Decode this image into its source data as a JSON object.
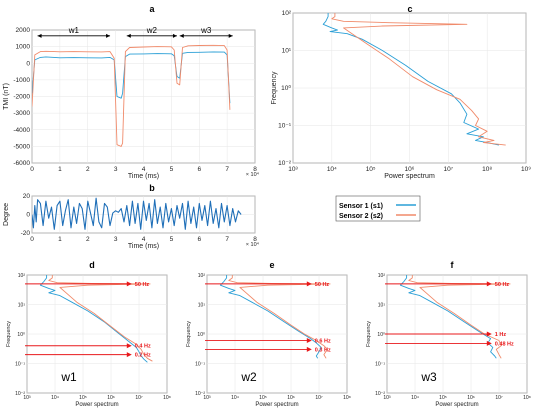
{
  "colors": {
    "s1": "#2a9fd6",
    "s2": "#f08a6a",
    "dark": "#1f6fb8",
    "red": "#e8181b",
    "grid": "#e6e6e6",
    "axis": "#333333"
  },
  "chart_data": [
    {
      "id": "a",
      "panel_label": "a",
      "type": "line",
      "xlabel": "Time (ms)",
      "ylabel": "TMI (nT)",
      "x_exponent": "× 10⁴",
      "xlim": [
        0,
        80000
      ],
      "ylim": [
        -6000,
        2000
      ],
      "xticks": [
        "0",
        "1",
        "2",
        "3",
        "4",
        "5",
        "6",
        "7",
        "8"
      ],
      "yticks": [
        "-6000",
        "-5000",
        "-4000",
        "-3000",
        "-2000",
        "-1000",
        "0",
        "1000",
        "2000"
      ],
      "annotations": [
        {
          "text": "w1",
          "x_start": 2000,
          "x_end": 28000,
          "y": 1650
        },
        {
          "text": "w2",
          "x_start": 34000,
          "x_end": 52000,
          "y": 1650
        },
        {
          "text": "w3",
          "x_start": 53000,
          "x_end": 72000,
          "y": 1650
        }
      ],
      "series": [
        {
          "name": "Sensor 1 (s1)",
          "color": "#2a9fd6",
          "x": [
            0,
            1000,
            3000,
            5000,
            8000,
            10000,
            15000,
            20000,
            25000,
            28000,
            29500,
            30500,
            32000,
            32500,
            33500,
            35000,
            40000,
            45000,
            50000,
            51000,
            52000,
            53000,
            54000,
            56000,
            60000,
            65000,
            69000,
            70000,
            71000
          ],
          "y": [
            -1800,
            200,
            350,
            380,
            350,
            330,
            340,
            330,
            320,
            350,
            200,
            -2000,
            -2100,
            -1800,
            400,
            550,
            560,
            580,
            570,
            450,
            -800,
            -900,
            600,
            650,
            660,
            680,
            670,
            500,
            -2400
          ]
        },
        {
          "name": "Sensor 2 (s2)",
          "color": "#f08a6a",
          "x": [
            0,
            1000,
            3000,
            5000,
            8000,
            10000,
            15000,
            20000,
            25000,
            28000,
            29500,
            30500,
            32000,
            32500,
            33500,
            35000,
            40000,
            45000,
            50000,
            51000,
            52000,
            53000,
            54000,
            56000,
            60000,
            65000,
            69000,
            70000,
            71000
          ],
          "y": [
            -2600,
            500,
            700,
            720,
            700,
            690,
            700,
            690,
            680,
            700,
            300,
            -4900,
            -5000,
            -4800,
            700,
            950,
            980,
            1000,
            990,
            800,
            -1200,
            -1300,
            950,
            1050,
            1070,
            1080,
            1060,
            800,
            -2800
          ]
        }
      ]
    },
    {
      "id": "b",
      "panel_label": "b",
      "type": "line",
      "xlabel": "Time (ms)",
      "ylabel": "Degree",
      "x_exponent": "× 10⁴",
      "xlim": [
        0,
        80000
      ],
      "ylim": [
        -25,
        25
      ],
      "xticks": [
        "0",
        "1",
        "2",
        "3",
        "4",
        "5",
        "6",
        "7",
        "8"
      ],
      "yticks": [
        "-20",
        "0",
        "20"
      ],
      "series": [
        {
          "name": "",
          "color": "#1f6fb8",
          "x": [
            0,
            500,
            1000,
            1500,
            2000,
            3000,
            4000,
            5000,
            6000,
            7000,
            8000,
            9000,
            10000,
            11000,
            12000,
            13000,
            14000,
            15000,
            16000,
            17000,
            18000,
            19000,
            20000,
            21000,
            22000,
            23000,
            24000,
            25000,
            26000,
            27000,
            28000,
            29000,
            30000,
            31000,
            32000,
            33000,
            34000,
            35000,
            36000,
            37000,
            38000,
            39000,
            40000,
            41000,
            42000,
            43000,
            44000,
            45000,
            46000,
            47000,
            48000,
            49000,
            50000,
            51000,
            52000,
            53000,
            54000,
            55000,
            56000,
            57000,
            58000,
            59000,
            60000,
            61000,
            62000,
            63000,
            64000,
            65000,
            66000,
            67000,
            68000,
            69000,
            70000,
            71000,
            72000,
            73000,
            74000,
            75000
          ],
          "y": [
            0,
            -18,
            12,
            -10,
            20,
            15,
            -15,
            18,
            -5,
            10,
            -20,
            12,
            18,
            -15,
            5,
            20,
            -18,
            10,
            -12,
            15,
            8,
            -20,
            18,
            2,
            -15,
            22,
            -10,
            -18,
            15,
            10,
            -15,
            2,
            5,
            3,
            8,
            -10,
            12,
            -15,
            18,
            -12,
            15,
            -20,
            18,
            -8,
            15,
            -18,
            20,
            -12,
            10,
            -18,
            15,
            -10,
            8,
            -15,
            12,
            -5,
            15,
            -20,
            18,
            -12,
            10,
            -18,
            15,
            -8,
            12,
            -15,
            18,
            -12,
            8,
            -18,
            15,
            -10,
            12,
            -15,
            8,
            -10,
            5,
            0
          ]
        }
      ]
    },
    {
      "id": "c",
      "panel_label": "c",
      "type": "line",
      "xlabel": "Power spectrum",
      "ylabel": "Frequency",
      "x_log": true,
      "y_log": true,
      "xlim": [
        1000,
        1000000000
      ],
      "ylim": [
        0.01,
        100
      ],
      "xticks": [
        "10³",
        "10⁴",
        "10⁵",
        "10⁶",
        "10⁷",
        "10⁸",
        "10⁹"
      ],
      "yticks": [
        "10⁻²",
        "10⁻¹",
        "10⁰",
        "10¹",
        "10²"
      ],
      "series": [
        {
          "name": "Sensor 1 (s1)",
          "color": "#2a9fd6",
          "x": [
            8000,
            8000,
            7000,
            6000,
            10000,
            14000,
            9000,
            25000,
            60000,
            200000,
            800000,
            3000000,
            12000000,
            20000000,
            30000000,
            25000000,
            60000000,
            30000000,
            80000000,
            50000000,
            100000000,
            200000000
          ],
          "y": [
            100,
            80,
            60,
            50,
            40,
            35,
            32,
            28,
            20,
            10,
            4,
            1.5,
            0.7,
            0.4,
            0.2,
            0.12,
            0.08,
            0.06,
            0.05,
            0.04,
            0.035,
            0.03
          ]
        },
        {
          "name": "Sensor 2 (s2)",
          "color": "#f08a6a",
          "x": [
            12000,
            12000,
            10000,
            20000,
            300000,
            30000000,
            200000,
            20000,
            30000,
            80000,
            300000,
            1200000,
            5000000,
            20000000,
            40000000,
            60000000,
            50000000,
            100000000,
            60000000,
            150000000,
            80000000,
            300000000
          ],
          "y": [
            100,
            80,
            70,
            60,
            55,
            50,
            45,
            40,
            30,
            15,
            6,
            2,
            0.9,
            0.5,
            0.25,
            0.15,
            0.1,
            0.07,
            0.05,
            0.04,
            0.035,
            0.03
          ]
        }
      ]
    },
    {
      "id": "d",
      "panel_label": "d",
      "type": "line",
      "xlabel": "Power spectrum",
      "ylabel": "Frequency",
      "window_label": "w1",
      "x_log": true,
      "y_log": true,
      "xlim": [
        1000,
        100000000
      ],
      "ylim": [
        0.01,
        100
      ],
      "xticks": [
        "10³",
        "10⁴",
        "10⁵",
        "10⁶",
        "10⁷",
        "10⁸"
      ],
      "yticks": [
        "10⁻²",
        "10⁻¹",
        "10⁰",
        "10¹",
        "10²"
      ],
      "markers": [
        {
          "label": "50 Hz",
          "freq": 50
        },
        {
          "label": "0.4 Hz",
          "freq": 0.4
        },
        {
          "label": "0.2 Hz",
          "freq": 0.2
        }
      ],
      "series": [
        {
          "name": "Sensor 1 (s1)",
          "color": "#2a9fd6",
          "x": [
            5000,
            5000,
            4000,
            3000,
            6000,
            10000,
            6000,
            15000,
            40000,
            150000,
            600000,
            2000000,
            5000000,
            8000000,
            10000000,
            12000000,
            15000000,
            20000000
          ],
          "y": [
            100,
            80,
            60,
            45,
            35,
            30,
            25,
            20,
            12,
            6,
            2.5,
            1,
            0.5,
            0.35,
            0.25,
            0.18,
            0.14,
            0.11
          ]
        },
        {
          "name": "Sensor 2 (s2)",
          "color": "#f08a6a",
          "x": [
            8000,
            8000,
            6000,
            12000,
            200000,
            25000000,
            150000,
            15000,
            25000,
            60000,
            250000,
            1000000,
            3000000,
            8000000,
            12000000,
            15000000,
            20000000,
            30000000
          ],
          "y": [
            100,
            80,
            65,
            55,
            52,
            50,
            45,
            38,
            25,
            12,
            5,
            1.8,
            0.8,
            0.45,
            0.3,
            0.2,
            0.15,
            0.12
          ]
        }
      ]
    },
    {
      "id": "e",
      "panel_label": "e",
      "type": "line",
      "xlabel": "Power spectrum",
      "ylabel": "Frequency",
      "window_label": "w2",
      "x_log": true,
      "y_log": true,
      "xlim": [
        1000,
        100000000
      ],
      "ylim": [
        0.01,
        100
      ],
      "xticks": [
        "10³",
        "10⁴",
        "10⁵",
        "10⁶",
        "10⁷",
        "10⁸"
      ],
      "yticks": [
        "10⁻²",
        "10⁻¹",
        "10⁰",
        "10¹",
        "10²"
      ],
      "markers": [
        {
          "label": "50 Hz",
          "freq": 50
        },
        {
          "label": "0.6 Hz",
          "freq": 0.6
        },
        {
          "label": "0.3 Hz",
          "freq": 0.3
        }
      ],
      "series": [
        {
          "name": "Sensor 1 (s1)",
          "color": "#2a9fd6",
          "x": [
            5000,
            5000,
            4000,
            3000,
            6000,
            10000,
            6000,
            15000,
            40000,
            150000,
            600000,
            2000000,
            5000000,
            8000000,
            12000000,
            10000000,
            8000000,
            9000000
          ],
          "y": [
            100,
            80,
            60,
            45,
            35,
            30,
            25,
            20,
            12,
            6,
            2.5,
            1.2,
            0.7,
            0.5,
            0.35,
            0.25,
            0.18,
            0.15
          ]
        },
        {
          "name": "Sensor 2 (s2)",
          "color": "#f08a6a",
          "x": [
            8000,
            8000,
            6000,
            12000,
            200000,
            25000000,
            150000,
            15000,
            25000,
            60000,
            250000,
            1000000,
            3000000,
            8000000,
            15000000,
            20000000,
            15000000,
            18000000
          ],
          "y": [
            100,
            80,
            65,
            55,
            52,
            50,
            45,
            38,
            25,
            12,
            5,
            2,
            1,
            0.6,
            0.4,
            0.3,
            0.2,
            0.15
          ]
        }
      ]
    },
    {
      "id": "f",
      "panel_label": "f",
      "type": "line",
      "xlabel": "Power spectrum",
      "ylabel": "Frequency",
      "window_label": "w3",
      "x_log": true,
      "y_log": true,
      "xlim": [
        1000,
        100000000
      ],
      "ylim": [
        0.01,
        100
      ],
      "xticks": [
        "10³",
        "10⁴",
        "10⁵",
        "10⁶",
        "10⁷",
        "10⁸"
      ],
      "yticks": [
        "10⁻²",
        "10⁻¹",
        "10⁰",
        "10¹",
        "10²"
      ],
      "markers": [
        {
          "label": "50 Hz",
          "freq": 50
        },
        {
          "label": "1 Hz",
          "freq": 1
        },
        {
          "label": "0.48 Hz",
          "freq": 0.48
        }
      ],
      "series": [
        {
          "name": "Sensor 1 (s1)",
          "color": "#2a9fd6",
          "x": [
            5000,
            5000,
            4000,
            3000,
            6000,
            10000,
            6000,
            15000,
            40000,
            150000,
            600000,
            2000000,
            5000000,
            4000000,
            6000000,
            5000000,
            7000000,
            8000000
          ],
          "y": [
            100,
            80,
            60,
            45,
            35,
            30,
            25,
            20,
            12,
            6,
            2.5,
            1.2,
            0.7,
            0.5,
            0.35,
            0.25,
            0.18,
            0.15
          ]
        },
        {
          "name": "Sensor 2 (s2)",
          "color": "#f08a6a",
          "x": [
            8000,
            8000,
            6000,
            12000,
            200000,
            25000000,
            150000,
            15000,
            25000,
            60000,
            250000,
            1000000,
            3000000,
            10000000,
            12000000,
            8000000,
            10000000,
            12000000
          ],
          "y": [
            100,
            80,
            65,
            55,
            52,
            50,
            45,
            38,
            25,
            12,
            5,
            2,
            1,
            0.6,
            0.4,
            0.3,
            0.2,
            0.15
          ]
        }
      ]
    }
  ],
  "legend": {
    "items": [
      {
        "label": "Sensor 1 (s1)",
        "color": "#2a9fd6"
      },
      {
        "label": "Sensor 2 (s2)",
        "color": "#f08a6a"
      }
    ]
  }
}
